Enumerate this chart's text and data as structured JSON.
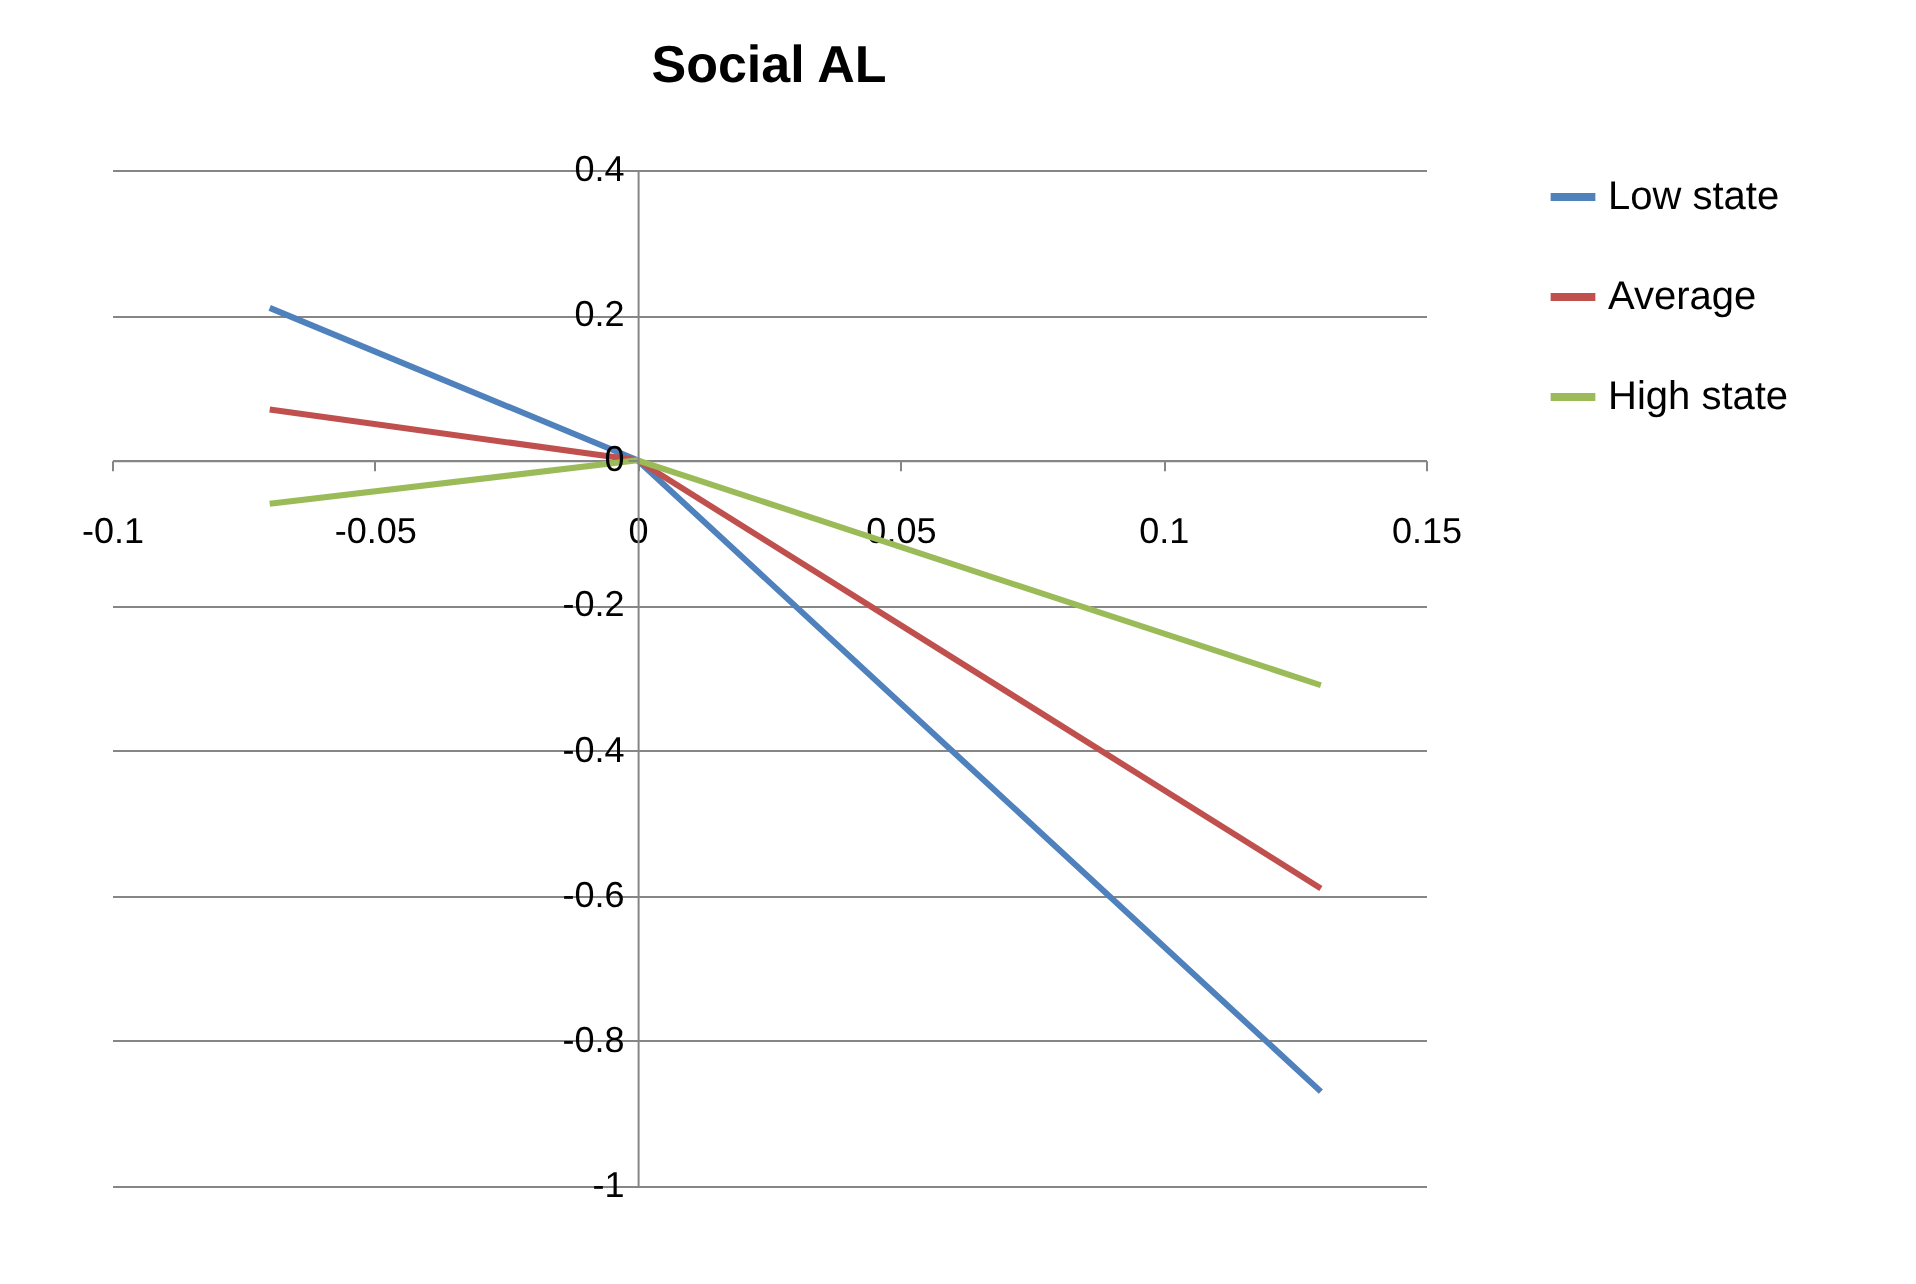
{
  "chart_data": {
    "type": "line",
    "title": "Social AL",
    "x": [
      -0.07,
      0,
      0.13
    ],
    "series": [
      {
        "name": "Low state",
        "color": "#4f81bd",
        "values": [
          0.21,
          0,
          -0.87
        ]
      },
      {
        "name": "Average",
        "color": "#c0504d",
        "values": [
          0.07,
          0,
          -0.59
        ]
      },
      {
        "name": "High state",
        "color": "#9bbb59",
        "values": [
          -0.06,
          0,
          -0.31
        ]
      }
    ],
    "xlim": [
      -0.1,
      0.15
    ],
    "xticks": [
      -0.1,
      -0.05,
      0,
      0.05,
      0.1,
      0.15
    ],
    "ylim": [
      -1,
      0.4
    ],
    "yticks": [
      -1,
      -0.8,
      -0.6,
      -0.4,
      -0.2,
      0,
      0.2,
      0.4
    ],
    "grid": "y",
    "legend": "right",
    "marker": "none",
    "line_style": "solid"
  }
}
